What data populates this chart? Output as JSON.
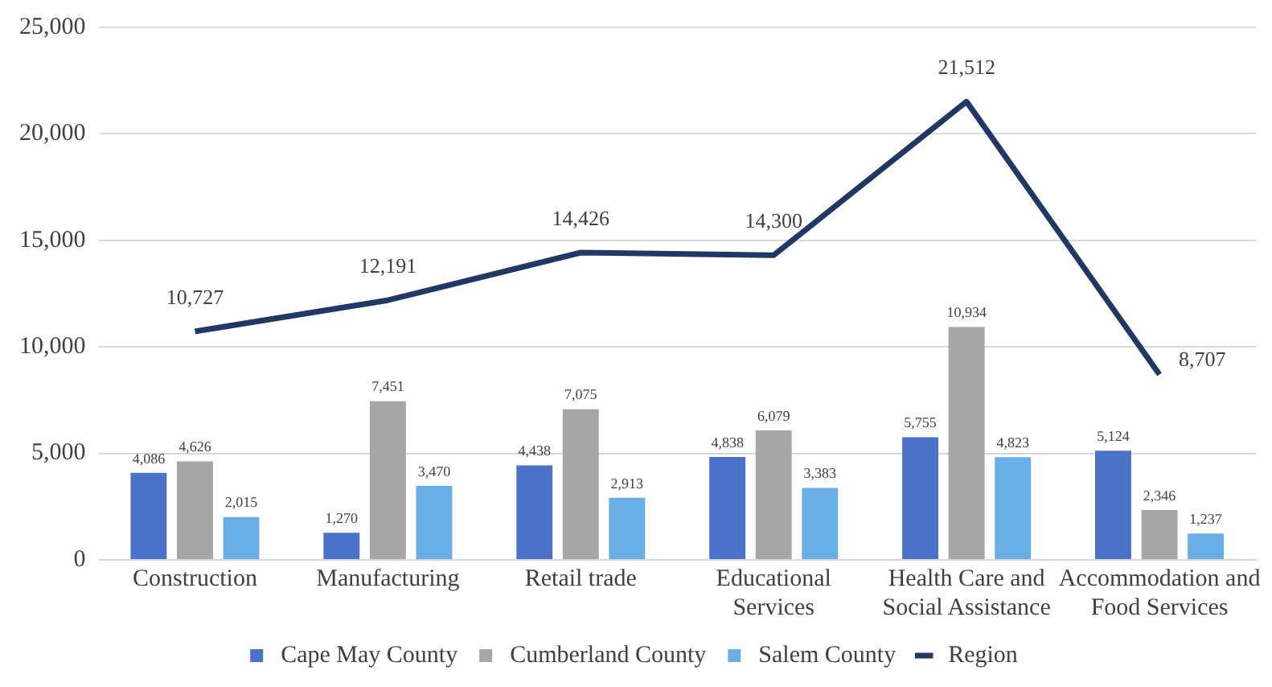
{
  "chart_data": {
    "type": "bar",
    "categories": [
      "Construction",
      "Manufacturing",
      "Retail trade",
      "Educational Services",
      "Health Care and Social Assistance",
      "Accommodation and Food Services"
    ],
    "series": [
      {
        "name": "Cape May County",
        "color": "#4a72c8",
        "values": [
          4086,
          1270,
          4438,
          4838,
          5755,
          5124
        ],
        "value_labels": [
          "4,086",
          "1,270",
          "4,438",
          "4,838",
          "5,755",
          "5,124"
        ]
      },
      {
        "name": "Cumberland County",
        "color": "#a6a6a6",
        "values": [
          4626,
          7451,
          7075,
          6079,
          10934,
          2346
        ],
        "value_labels": [
          "4,626",
          "7,451",
          "7,075",
          "6,079",
          "10,934",
          "2,346"
        ]
      },
      {
        "name": "Salem County",
        "color": "#6aaee6",
        "values": [
          2015,
          3470,
          2913,
          3383,
          4823,
          1237
        ],
        "value_labels": [
          "2,015",
          "3,470",
          "2,913",
          "3,383",
          "4,823",
          "1,237"
        ]
      },
      {
        "name": "Region",
        "type": "line",
        "color": "#203864",
        "values": [
          10727,
          12191,
          14426,
          14300,
          21512,
          8707
        ],
        "value_labels": [
          "10,727",
          "12,191",
          "14,426",
          "14,300",
          "21,512",
          "8,707"
        ]
      }
    ],
    "ylim": [
      0,
      25000
    ],
    "yticks": [
      0,
      {
        "value": 5000,
        "label": "5,000"
      },
      {
        "value": 10000,
        "label": "10,000"
      },
      {
        "value": 15000,
        "label": "15,000"
      },
      {
        "value": 20000,
        "label": "20,000"
      },
      {
        "value": 25000,
        "label": "25,000"
      }
    ],
    "grid": "y",
    "legend": "bottom",
    "marker": "none"
  }
}
